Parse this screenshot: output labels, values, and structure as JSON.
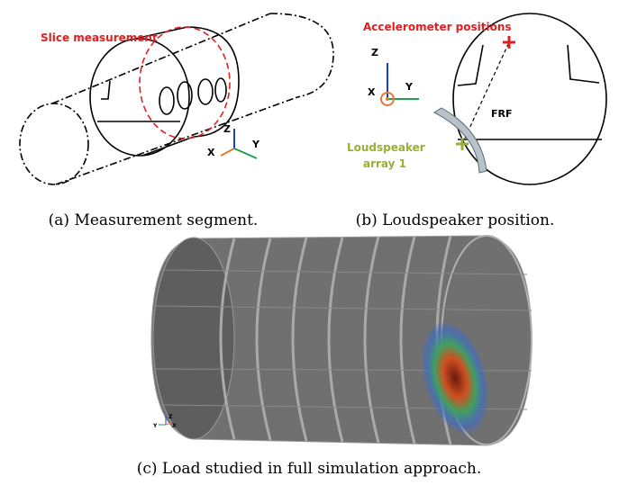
{
  "panel_a": {
    "annotation": "Slice measurement",
    "axes": [
      "Z",
      "X",
      "Y"
    ],
    "caption": "(a) Measurement segment."
  },
  "panel_b": {
    "annotation": "Accelerometer positions",
    "label": "FRF",
    "source": [
      "Loudspeaker",
      "array 1"
    ],
    "axes": [
      "Z",
      "X",
      "Y"
    ],
    "caption": "(b) Loudspeaker position."
  },
  "panel_c": {
    "axes": [
      "Z",
      "Y",
      "X"
    ],
    "caption": "(c) Load studied in full simulation approach."
  }
}
